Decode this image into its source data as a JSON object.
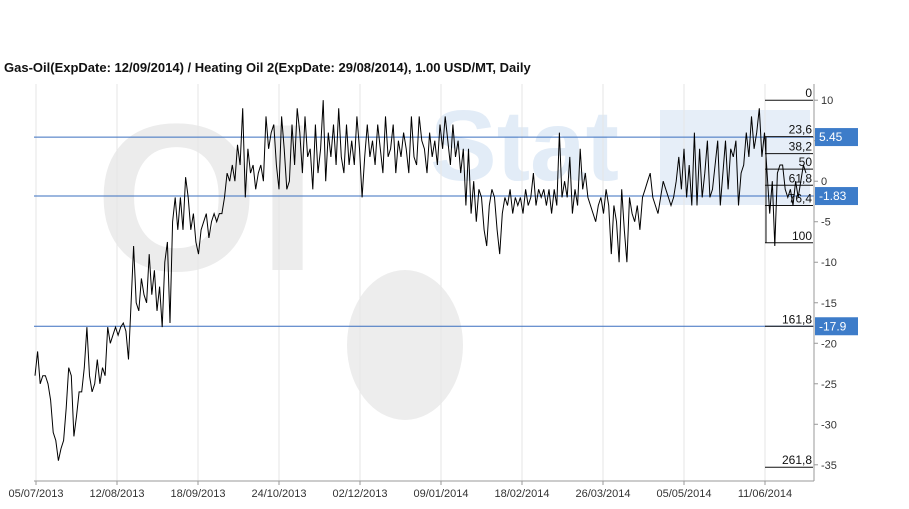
{
  "title": "Gas-Oil(ExpDate: 12/09/2014) / Heating Oil 2(ExpDate: 29/08/2014), 1.00 USD/MT, Daily",
  "watermark": "OilStat",
  "colors": {
    "line": "#000000",
    "level_line": "#3a6fbf",
    "badge": "#3d7cc9",
    "grid": "#e6e6e6"
  },
  "chart_data": {
    "type": "line",
    "ylim": [
      -37,
      12
    ],
    "y_ticks": [
      10,
      5,
      0,
      -5,
      -10,
      -15,
      -20,
      -25,
      -30,
      -35
    ],
    "x_labels": [
      "05/07/2013",
      "12/08/2013",
      "18/09/2013",
      "24/10/2013",
      "02/12/2013",
      "09/01/2014",
      "18/02/2014",
      "26/03/2014",
      "05/05/2014",
      "11/06/2014"
    ],
    "series": [
      {
        "values": [
          -24,
          -21,
          -25,
          -24,
          -24,
          -25,
          -27,
          -31,
          -32,
          -34.5,
          -33,
          -32,
          -28,
          -23,
          -24,
          -31.5,
          -29,
          -26,
          -26,
          -23,
          -18,
          -24,
          -26,
          -25,
          -22,
          -25,
          -23,
          -24,
          -18,
          -20,
          -19,
          -18,
          -19,
          -18,
          -17.5,
          -18.5,
          -22,
          -15,
          -8,
          -15,
          -16,
          -12,
          -14,
          -15,
          -9,
          -14,
          -11,
          -16,
          -13,
          -18,
          -10,
          -7.5,
          -17.5,
          -5,
          -2,
          -6,
          -2,
          -6,
          0.5,
          -2,
          -6,
          -4,
          -7.5,
          -9,
          -6,
          -5,
          -4,
          -7,
          -5,
          -4,
          -5,
          -4,
          -4,
          -2,
          1,
          0,
          2,
          0,
          4.5,
          2,
          9,
          -2,
          4,
          1,
          2,
          -1,
          1,
          2,
          0,
          8,
          4,
          6,
          7,
          2,
          -1,
          8,
          4,
          -1,
          0,
          7,
          2,
          9,
          6,
          1,
          8,
          3,
          4,
          -1,
          7,
          1,
          4,
          10,
          0,
          6,
          3,
          7,
          2,
          9,
          3,
          1,
          7,
          2,
          5,
          2,
          8,
          4,
          -2,
          3,
          7,
          3,
          5,
          2,
          7,
          4,
          1,
          8,
          3,
          4,
          7,
          1,
          5,
          3,
          6,
          4,
          1,
          8,
          3,
          2,
          8,
          5,
          4,
          1,
          6,
          3,
          5,
          2,
          7,
          4,
          8,
          5,
          2,
          7,
          3,
          5,
          1,
          4,
          -3,
          4,
          -4,
          0,
          -5,
          -1,
          -2,
          -6,
          -8,
          -3,
          -1,
          -2,
          -6,
          -9,
          -4,
          -2,
          -3,
          -1,
          -4,
          -2,
          -3,
          -2,
          -4,
          -1,
          -3,
          -2,
          1,
          -3,
          -1,
          -2,
          -1,
          -3,
          -1,
          -4,
          -1,
          -3,
          6,
          -2,
          0,
          -2,
          3,
          -4,
          -1,
          -3,
          4,
          -1,
          1,
          -2,
          -3,
          -4,
          -5,
          -3,
          -2,
          -4,
          -1,
          -3,
          -9,
          -3,
          -5,
          -10,
          -1,
          -6,
          -10,
          -2,
          -4,
          -5,
          -3,
          -6,
          -2,
          -1,
          0,
          1,
          -2,
          -3,
          -4,
          -2,
          0,
          -1,
          -2,
          -3,
          -2,
          0,
          3,
          -1,
          4,
          -2,
          2,
          -3,
          6,
          -3,
          4,
          -2,
          1,
          5,
          -2,
          -1,
          2,
          5,
          -3,
          1,
          5,
          -1,
          4,
          3,
          5,
          -3,
          1,
          2,
          6,
          3,
          8,
          4,
          6,
          9,
          3,
          6,
          1,
          -4,
          0,
          -8,
          1,
          2,
          2,
          -1,
          -2,
          -1,
          -3,
          0,
          -2,
          0,
          2,
          1
        ]
      }
    ],
    "fib_levels": [
      {
        "label": "0",
        "value": 10
      },
      {
        "label": "23,6",
        "value": 5.5
      },
      {
        "label": "38,2",
        "value": 3.4
      },
      {
        "label": "50",
        "value": 1.5
      },
      {
        "label": "61,8",
        "value": -0.5
      },
      {
        "label": "76,4",
        "value": -3.0
      },
      {
        "label": "100",
        "value": -7.6
      },
      {
        "label": "161,8",
        "value": -17.9
      },
      {
        "label": "261,8",
        "value": -35.3
      }
    ],
    "levels": [
      {
        "label": "5.45",
        "value": 5.45
      },
      {
        "label": "-1.83",
        "value": -1.83
      },
      {
        "label": "-17.9",
        "value": -17.9
      }
    ]
  }
}
